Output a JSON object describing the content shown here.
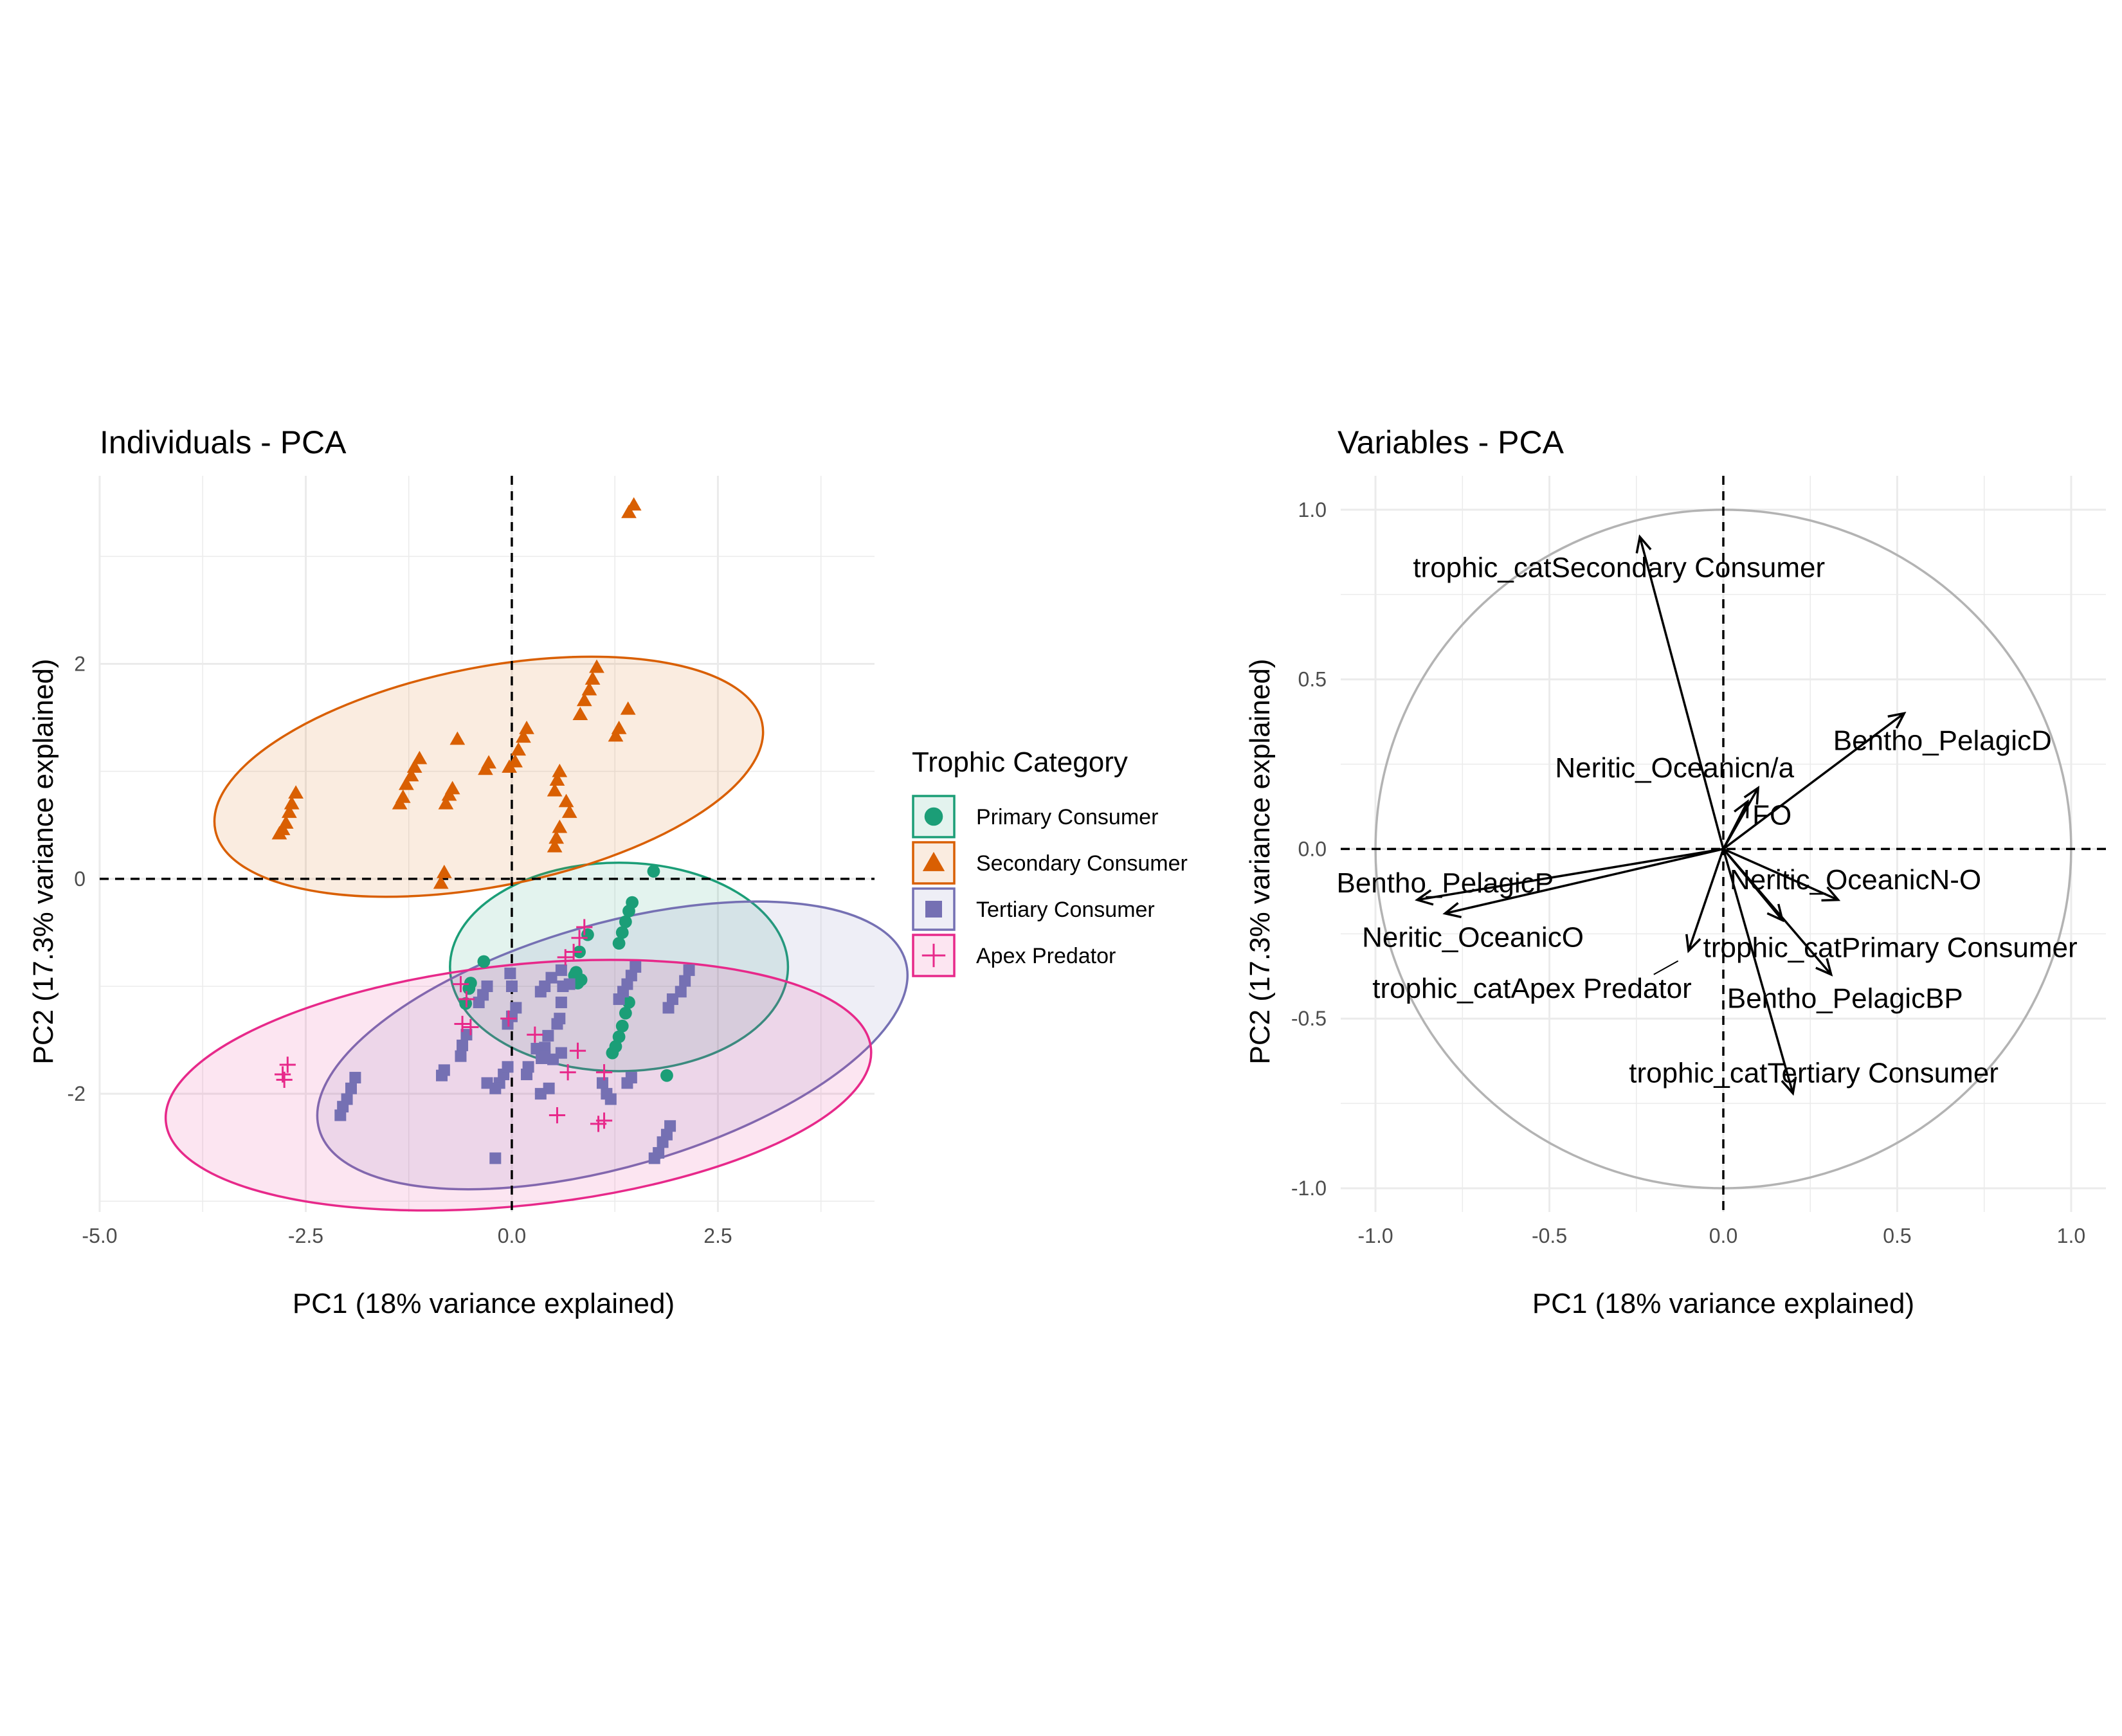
{
  "chart_data": [
    {
      "type": "scatter",
      "title": "Individuals - PCA",
      "xlabel": "PC1 (18% variance explained)",
      "ylabel": "PC2 (17.3% variance explained)",
      "xlim": [
        -5.0,
        4.4
      ],
      "ylim": [
        -3.1,
        3.75
      ],
      "xticks": [
        -5.0,
        -2.5,
        0.0,
        2.5
      ],
      "xtick_labels": [
        "-5.0",
        "-2.5",
        "0.0",
        "2.5"
      ],
      "yticks": [
        -2,
        0,
        2
      ],
      "ytick_labels": [
        "-2",
        "0",
        "2"
      ],
      "grid": true,
      "reference_lines": {
        "x": 0,
        "y": 0,
        "style": "dashed"
      },
      "legend": {
        "title": "Trophic Category",
        "placement": "right"
      },
      "series": [
        {
          "name": "Primary Consumer",
          "color": "#1b9e77",
          "marker": "circle",
          "ellipse": {
            "cx": 1.3,
            "cy": -0.82,
            "rx": 2.05,
            "ry": 0.97,
            "angle": 0
          },
          "points": [
            [
              1.72,
              0.07
            ],
            [
              1.46,
              -0.22
            ],
            [
              1.42,
              -0.3
            ],
            [
              1.38,
              -0.4
            ],
            [
              1.34,
              -0.5
            ],
            [
              1.3,
              -0.6
            ],
            [
              0.92,
              -0.52
            ],
            [
              0.82,
              -0.68
            ],
            [
              0.78,
              -0.87
            ],
            [
              0.76,
              -0.9
            ],
            [
              0.76,
              -0.96
            ],
            [
              0.8,
              -0.97
            ],
            [
              0.84,
              -0.94
            ],
            [
              1.42,
              -1.15
            ],
            [
              1.38,
              -1.25
            ],
            [
              1.34,
              -1.37
            ],
            [
              1.3,
              -1.47
            ],
            [
              1.26,
              -1.56
            ],
            [
              1.22,
              -1.62
            ],
            [
              1.88,
              -1.83
            ],
            [
              -0.34,
              -0.77
            ],
            [
              -0.5,
              -0.97
            ],
            [
              -0.52,
              -1.02
            ],
            [
              -0.56,
              -1.16
            ]
          ]
        },
        {
          "name": "Secondary Consumer",
          "color": "#d95f02",
          "marker": "triangle",
          "ellipse": {
            "cx": -0.28,
            "cy": 0.95,
            "rx": 3.38,
            "ry": 1.02,
            "angle": 11
          },
          "points": [
            [
              1.48,
              3.48
            ],
            [
              1.42,
              3.41
            ],
            [
              1.03,
              1.97
            ],
            [
              0.98,
              1.86
            ],
            [
              0.94,
              1.76
            ],
            [
              0.88,
              1.66
            ],
            [
              0.83,
              1.53
            ],
            [
              1.41,
              1.58
            ],
            [
              1.3,
              1.4
            ],
            [
              1.26,
              1.33
            ],
            [
              0.18,
              1.4
            ],
            [
              0.14,
              1.32
            ],
            [
              0.08,
              1.2
            ],
            [
              0.04,
              1.09
            ],
            [
              -0.03,
              1.04
            ],
            [
              -0.28,
              1.08
            ],
            [
              -0.32,
              1.02
            ],
            [
              -0.66,
              1.3
            ],
            [
              -0.72,
              0.84
            ],
            [
              -0.76,
              0.78
            ],
            [
              -0.8,
              0.7
            ],
            [
              -1.12,
              1.12
            ],
            [
              -1.18,
              1.04
            ],
            [
              -1.22,
              0.96
            ],
            [
              -1.28,
              0.88
            ],
            [
              -1.32,
              0.76
            ],
            [
              -1.36,
              0.7
            ],
            [
              0.58,
              1.0
            ],
            [
              0.55,
              0.92
            ],
            [
              0.52,
              0.82
            ],
            [
              0.66,
              0.72
            ],
            [
              0.7,
              0.62
            ],
            [
              0.58,
              0.48
            ],
            [
              0.54,
              0.38
            ],
            [
              0.52,
              0.3
            ],
            [
              -2.62,
              0.8
            ],
            [
              -2.67,
              0.7
            ],
            [
              -2.7,
              0.62
            ],
            [
              -2.74,
              0.52
            ],
            [
              -2.78,
              0.46
            ],
            [
              -2.82,
              0.42
            ],
            [
              -0.82,
              0.06
            ],
            [
              -0.86,
              -0.04
            ]
          ]
        },
        {
          "name": "Tertiary Consumer",
          "color": "#7570b3",
          "marker": "square",
          "ellipse": {
            "cx": 1.22,
            "cy": -1.55,
            "rx": 3.7,
            "ry": 1.13,
            "angle": 16
          },
          "points": [
            [
              2.15,
              -0.85
            ],
            [
              2.1,
              -0.95
            ],
            [
              2.05,
              -1.05
            ],
            [
              1.95,
              -1.12
            ],
            [
              1.9,
              -1.2
            ],
            [
              1.5,
              -0.82
            ],
            [
              1.45,
              -0.9
            ],
            [
              1.4,
              -0.98
            ],
            [
              1.35,
              -1.05
            ],
            [
              1.3,
              -1.12
            ],
            [
              0.7,
              -0.98
            ],
            [
              0.6,
              -0.85
            ],
            [
              0.62,
              -1.0
            ],
            [
              0.6,
              -1.15
            ],
            [
              0.58,
              -1.3
            ],
            [
              0.5,
              -1.68
            ],
            [
              0.55,
              -1.35
            ],
            [
              0.44,
              -1.46
            ],
            [
              0.4,
              -1.57
            ],
            [
              0.36,
              -1.67
            ],
            [
              0.2,
              -1.75
            ],
            [
              0.18,
              -1.82
            ],
            [
              0.48,
              -0.92
            ],
            [
              0.4,
              -1.0
            ],
            [
              0.35,
              -1.05
            ],
            [
              0.05,
              -1.2
            ],
            [
              0.0,
              -1.28
            ],
            [
              -0.05,
              -1.35
            ],
            [
              0.0,
              -1.0
            ],
            [
              -0.02,
              -0.88
            ],
            [
              -0.3,
              -1.0
            ],
            [
              -0.35,
              -1.08
            ],
            [
              -0.4,
              -1.15
            ],
            [
              -0.55,
              -1.45
            ],
            [
              -0.6,
              -1.55
            ],
            [
              -0.62,
              -1.65
            ],
            [
              -0.1,
              -1.82
            ],
            [
              -0.15,
              -1.9
            ],
            [
              -0.2,
              -1.95
            ],
            [
              -0.05,
              -1.75
            ],
            [
              0.3,
              -1.58
            ],
            [
              0.4,
              -1.65
            ],
            [
              0.6,
              -1.62
            ],
            [
              -0.82,
              -1.78
            ],
            [
              -0.85,
              -1.83
            ],
            [
              -0.2,
              -2.6
            ],
            [
              -1.9,
              -1.85
            ],
            [
              -1.95,
              -1.95
            ],
            [
              -2.0,
              -2.05
            ],
            [
              -2.05,
              -2.12
            ],
            [
              -2.08,
              -2.2
            ],
            [
              1.1,
              -1.9
            ],
            [
              1.15,
              -2.0
            ],
            [
              1.2,
              -2.05
            ],
            [
              1.4,
              -1.9
            ],
            [
              1.45,
              -1.85
            ],
            [
              1.92,
              -2.3
            ],
            [
              1.88,
              -2.38
            ],
            [
              1.83,
              -2.45
            ],
            [
              1.78,
              -2.55
            ],
            [
              1.73,
              -2.6
            ],
            [
              0.45,
              -1.95
            ],
            [
              0.35,
              -2.0
            ],
            [
              -0.3,
              -1.9
            ]
          ]
        },
        {
          "name": "Apex Predator",
          "color": "#e7298a",
          "marker": "plus",
          "ellipse": {
            "cx": 0.08,
            "cy": -1.92,
            "rx": 4.3,
            "ry": 1.12,
            "angle": 6
          },
          "points": [
            [
              0.88,
              -0.45
            ],
            [
              0.82,
              -0.55
            ],
            [
              0.75,
              -0.68
            ],
            [
              0.65,
              -0.73
            ],
            [
              -0.62,
              -0.98
            ],
            [
              -0.55,
              -1.12
            ],
            [
              -0.6,
              -1.35
            ],
            [
              -0.5,
              -1.38
            ],
            [
              0.28,
              -1.45
            ],
            [
              0.8,
              -1.6
            ],
            [
              0.68,
              -1.8
            ],
            [
              1.12,
              -1.8
            ],
            [
              0.55,
              -2.2
            ],
            [
              1.12,
              -2.25
            ],
            [
              1.05,
              -2.28
            ],
            [
              -2.72,
              -1.73
            ],
            [
              -2.78,
              -1.82
            ],
            [
              -2.76,
              -1.87
            ],
            [
              -0.04,
              -1.3
            ]
          ]
        }
      ]
    },
    {
      "type": "biplot",
      "title": "Variables - PCA",
      "xlabel": "PC1 (18% variance explained)",
      "ylabel": "PC2 (17.3% variance explained)",
      "xlim": [
        -1.1,
        1.1
      ],
      "ylim": [
        -1.07,
        1.1
      ],
      "xticks": [
        -1.0,
        -0.5,
        0.0,
        0.5,
        1.0
      ],
      "xtick_labels": [
        "-1.0",
        "-0.5",
        "0.0",
        "0.5",
        "1.0"
      ],
      "yticks": [
        -1.0,
        -0.5,
        0.0,
        0.5,
        1.0
      ],
      "ytick_labels": [
        "-1.0",
        "-0.5",
        "0.0",
        "0.5",
        "1.0"
      ],
      "grid": true,
      "reference_lines": {
        "x": 0,
        "y": 0,
        "style": "dashed"
      },
      "circle_radius": 1.0,
      "variables": [
        {
          "name": "trophic_catSecondary Consumer",
          "x": -0.24,
          "y": 0.92,
          "label_x": -0.3,
          "label_y": 0.83
        },
        {
          "name": "Bentho_PelagicD",
          "x": 0.52,
          "y": 0.4,
          "label_x": 0.63,
          "label_y": 0.32
        },
        {
          "name": "Neritic_Oceanicn/a",
          "x": 0.1,
          "y": 0.18,
          "label_x": -0.14,
          "label_y": 0.24
        },
        {
          "name": "FO",
          "x": 0.07,
          "y": 0.14,
          "label_x": 0.14,
          "label_y": 0.1
        },
        {
          "name": "Bentho_PelagicP",
          "x": -0.88,
          "y": -0.15,
          "label_x": -0.8,
          "label_y": -0.1
        },
        {
          "name": "Neritic_OceanicO",
          "x": -0.8,
          "y": -0.19,
          "label_x": -0.72,
          "label_y": -0.26
        },
        {
          "name": "Neritic_OceanicN-O",
          "x": 0.33,
          "y": -0.15,
          "label_x": 0.38,
          "label_y": -0.09
        },
        {
          "name": "trophic_catPrimary Consumer",
          "x": 0.17,
          "y": -0.21,
          "label_x": 0.48,
          "label_y": -0.29
        },
        {
          "name": "trophic_catApex Predator",
          "x": -0.1,
          "y": -0.3,
          "label_x": -0.55,
          "label_y": -0.41
        },
        {
          "name": "Bentho_PelagicBP",
          "x": 0.31,
          "y": -0.37,
          "label_x": 0.35,
          "label_y": -0.44
        },
        {
          "name": "trophic_catTertiary Consumer",
          "x": 0.2,
          "y": -0.72,
          "label_x": 0.26,
          "label_y": -0.66
        }
      ]
    }
  ]
}
